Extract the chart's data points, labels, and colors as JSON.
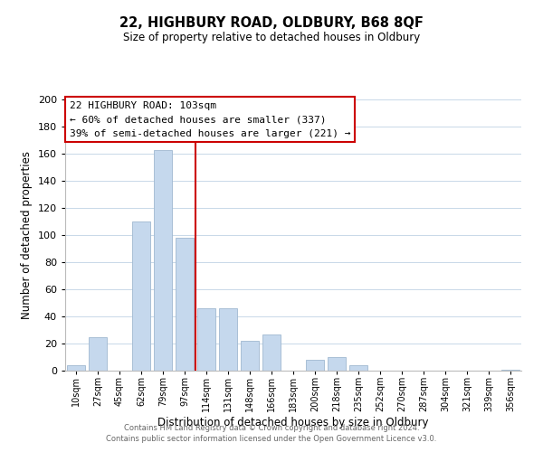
{
  "title": "22, HIGHBURY ROAD, OLDBURY, B68 8QF",
  "subtitle": "Size of property relative to detached houses in Oldbury",
  "xlabel": "Distribution of detached houses by size in Oldbury",
  "ylabel": "Number of detached properties",
  "bar_labels": [
    "10sqm",
    "27sqm",
    "45sqm",
    "62sqm",
    "79sqm",
    "97sqm",
    "114sqm",
    "131sqm",
    "148sqm",
    "166sqm",
    "183sqm",
    "200sqm",
    "218sqm",
    "235sqm",
    "252sqm",
    "270sqm",
    "287sqm",
    "304sqm",
    "321sqm",
    "339sqm",
    "356sqm"
  ],
  "bar_values": [
    4,
    25,
    0,
    110,
    163,
    98,
    46,
    46,
    22,
    27,
    0,
    8,
    10,
    4,
    0,
    0,
    0,
    0,
    0,
    0,
    1
  ],
  "bar_color": "#c5d8ed",
  "bar_edge_color": "#a0b8d0",
  "vline_x": 5.5,
  "vline_color": "#cc0000",
  "ylim": [
    0,
    200
  ],
  "yticks": [
    0,
    20,
    40,
    60,
    80,
    100,
    120,
    140,
    160,
    180,
    200
  ],
  "annotation_title": "22 HIGHBURY ROAD: 103sqm",
  "annotation_line1": "← 60% of detached houses are smaller (337)",
  "annotation_line2": "39% of semi-detached houses are larger (221) →",
  "annotation_box_color": "#ffffff",
  "annotation_box_edge": "#cc0000",
  "footer_line1": "Contains HM Land Registry data © Crown copyright and database right 2024.",
  "footer_line2": "Contains public sector information licensed under the Open Government Licence v3.0.",
  "background_color": "#ffffff",
  "grid_color": "#c8d8e8"
}
